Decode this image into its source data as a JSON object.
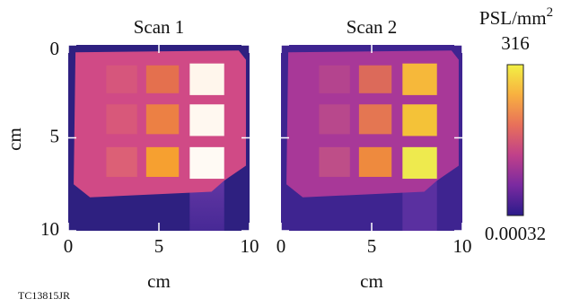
{
  "figure_id": "TC13815JR",
  "chart_data": [
    {
      "type": "heatmap",
      "title": "Scan 1",
      "xlabel": "cm",
      "ylabel": "cm",
      "xlim": [
        0,
        10
      ],
      "ylim": [
        10,
        0
      ],
      "xticks": [
        0,
        5,
        10
      ],
      "yticks": [
        0,
        5,
        10
      ]
    },
    {
      "type": "heatmap",
      "title": "Scan 2",
      "xlabel": "cm",
      "xlim": [
        0,
        10
      ],
      "ylim": [
        10,
        0
      ],
      "xticks": [
        0,
        5,
        10
      ]
    }
  ],
  "colorbar": {
    "label": "PSL/mm",
    "label_sup": "2",
    "lim": [
      0.00032,
      316
    ],
    "ticks": [
      0.00032,
      316
    ],
    "log": true,
    "colors": [
      "#2a1b8a",
      "#7a2aa0",
      "#c0408a",
      "#e8705a",
      "#f8b040",
      "#f2f044"
    ]
  }
}
